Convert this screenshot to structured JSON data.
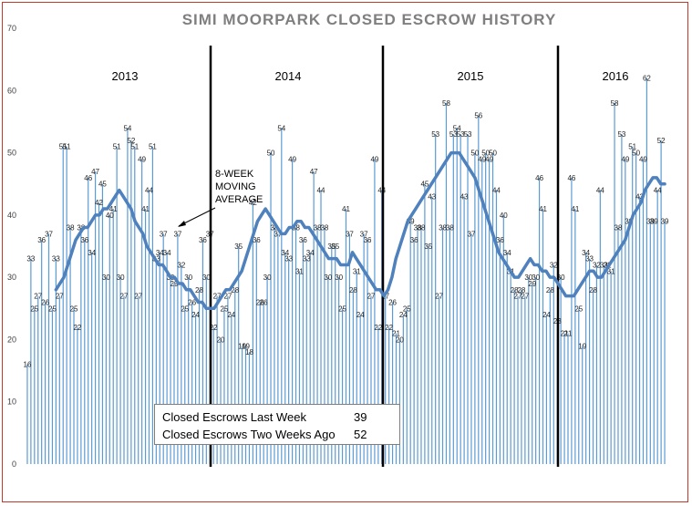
{
  "chart_data": {
    "type": "bar",
    "title": "SIMI MOORPARK CLOSED ESCROW HISTORY",
    "xlabel": "",
    "ylabel": "",
    "ylim": [
      0,
      70
    ],
    "yticks": [
      0,
      10,
      20,
      30,
      40,
      50,
      60,
      70
    ],
    "grid": false,
    "legend": "none",
    "bar_color": "#5b9bd5",
    "ma_color": "#4f81bd",
    "year_labels": [
      "2013",
      "2014",
      "2015",
      "2016"
    ],
    "annotation": [
      "8-WEEK",
      "MOVING",
      "AVERAGE"
    ],
    "values": [
      16,
      33,
      25,
      27,
      36,
      26,
      37,
      25,
      33,
      27,
      51,
      51,
      38,
      25,
      22,
      38,
      36,
      46,
      34,
      47,
      42,
      45,
      30,
      40,
      41,
      51,
      30,
      27,
      54,
      52,
      51,
      27,
      49,
      41,
      44,
      51,
      33,
      34,
      37,
      34,
      30,
      29,
      37,
      32,
      25,
      30,
      26,
      24,
      28,
      36,
      30,
      37,
      22,
      27,
      20,
      25,
      27,
      24,
      28,
      35,
      19,
      19,
      18,
      42,
      36,
      26,
      26,
      30,
      50,
      38,
      37,
      54,
      34,
      33,
      49,
      38,
      31,
      36,
      33,
      34,
      47,
      38,
      44,
      38,
      30,
      35,
      35,
      30,
      25,
      41,
      37,
      28,
      31,
      24,
      37,
      36,
      27,
      49,
      22,
      44,
      27,
      22,
      26,
      21,
      20,
      24,
      25,
      39,
      36,
      38,
      38,
      45,
      35,
      43,
      53,
      27,
      38,
      58,
      38,
      53,
      54,
      53,
      43,
      53,
      37,
      50,
      56,
      49,
      50,
      49,
      50,
      44,
      36,
      40,
      34,
      31,
      28,
      27,
      28,
      27,
      30,
      29,
      30,
      46,
      41,
      24,
      28,
      32,
      23,
      30,
      21,
      21,
      46,
      41,
      25,
      19,
      34,
      33,
      28,
      32,
      44,
      32,
      32,
      31,
      58,
      38,
      53,
      49,
      39,
      51,
      50,
      43,
      49,
      62,
      39,
      39,
      44,
      52,
      39
    ],
    "labeled_values": [
      16,
      33,
      25,
      27,
      36,
      26,
      37,
      25,
      33,
      27,
      51,
      51,
      38,
      25,
      22,
      38,
      36,
      46,
      34,
      47,
      42,
      45,
      30,
      40,
      41,
      51,
      30,
      27,
      54,
      52,
      51,
      27,
      49,
      41,
      44,
      51,
      33,
      34,
      37,
      34,
      30,
      29,
      37,
      32,
      25,
      30,
      26,
      24,
      28,
      36,
      30,
      37,
      22,
      27,
      20,
      25,
      27,
      24,
      28,
      35,
      19,
      19,
      18,
      42,
      36,
      26,
      26,
      30,
      50,
      38,
      37,
      54,
      34,
      33,
      49,
      38,
      31,
      36,
      33,
      34,
      47,
      38,
      44,
      38,
      30,
      35,
      35,
      30,
      25,
      41,
      37,
      28,
      31,
      24,
      37,
      36,
      27,
      49,
      22,
      44,
      27,
      22,
      26,
      21,
      20,
      24,
      25,
      39,
      36,
      38,
      38,
      45,
      35,
      43,
      53,
      27,
      38,
      58,
      38,
      53,
      54,
      53,
      43,
      53,
      37,
      50,
      56,
      49,
      50,
      49,
      50,
      44,
      36,
      40,
      34,
      31,
      28,
      27,
      28,
      27,
      30,
      29,
      30,
      46,
      41,
      24,
      28,
      32,
      23,
      30,
      21,
      21,
      46,
      41,
      25,
      19,
      34,
      33,
      28,
      32,
      44,
      32,
      32,
      31,
      58,
      38,
      53,
      49,
      39,
      51,
      50,
      43,
      49,
      62,
      39,
      39,
      44,
      52,
      39
    ],
    "moving_average": [
      28,
      29,
      30,
      32,
      34,
      36,
      37,
      38,
      38,
      39,
      40,
      40,
      41,
      41,
      42,
      43,
      44,
      43,
      42,
      41,
      39,
      38,
      37,
      35,
      34,
      33,
      32,
      32,
      31,
      30,
      30,
      29,
      29,
      28,
      28,
      27,
      26,
      26,
      25,
      25,
      25,
      26,
      27,
      28,
      28,
      29,
      30,
      31,
      33,
      35,
      37,
      39,
      40,
      41,
      40,
      39,
      38,
      37,
      37,
      38,
      38,
      39,
      39,
      38,
      38,
      37,
      36,
      35,
      34,
      33,
      33,
      33,
      32,
      32,
      32,
      34,
      33,
      32,
      31,
      30,
      29,
      28,
      28,
      27,
      28,
      30,
      33,
      35,
      37,
      39,
      40,
      41,
      42,
      43,
      44,
      45,
      46,
      47,
      48,
      49,
      50,
      50,
      50,
      49,
      48,
      47,
      46,
      44,
      42,
      40,
      38,
      36,
      34,
      33,
      32,
      31,
      30,
      30,
      31,
      32,
      33,
      32,
      32,
      31,
      31,
      30,
      30,
      29,
      28,
      27,
      27,
      27,
      28,
      29,
      30,
      31,
      31,
      30,
      30,
      31,
      32,
      33,
      34,
      35,
      36,
      38,
      40,
      41,
      42,
      44,
      45,
      46,
      46,
      45,
      45
    ]
  },
  "info_box": {
    "last_week_label": "Closed Escrows Last Week",
    "last_week_value": "39",
    "two_weeks_label": "Closed Escrows Two Weeks Ago",
    "two_weeks_value": "52"
  }
}
